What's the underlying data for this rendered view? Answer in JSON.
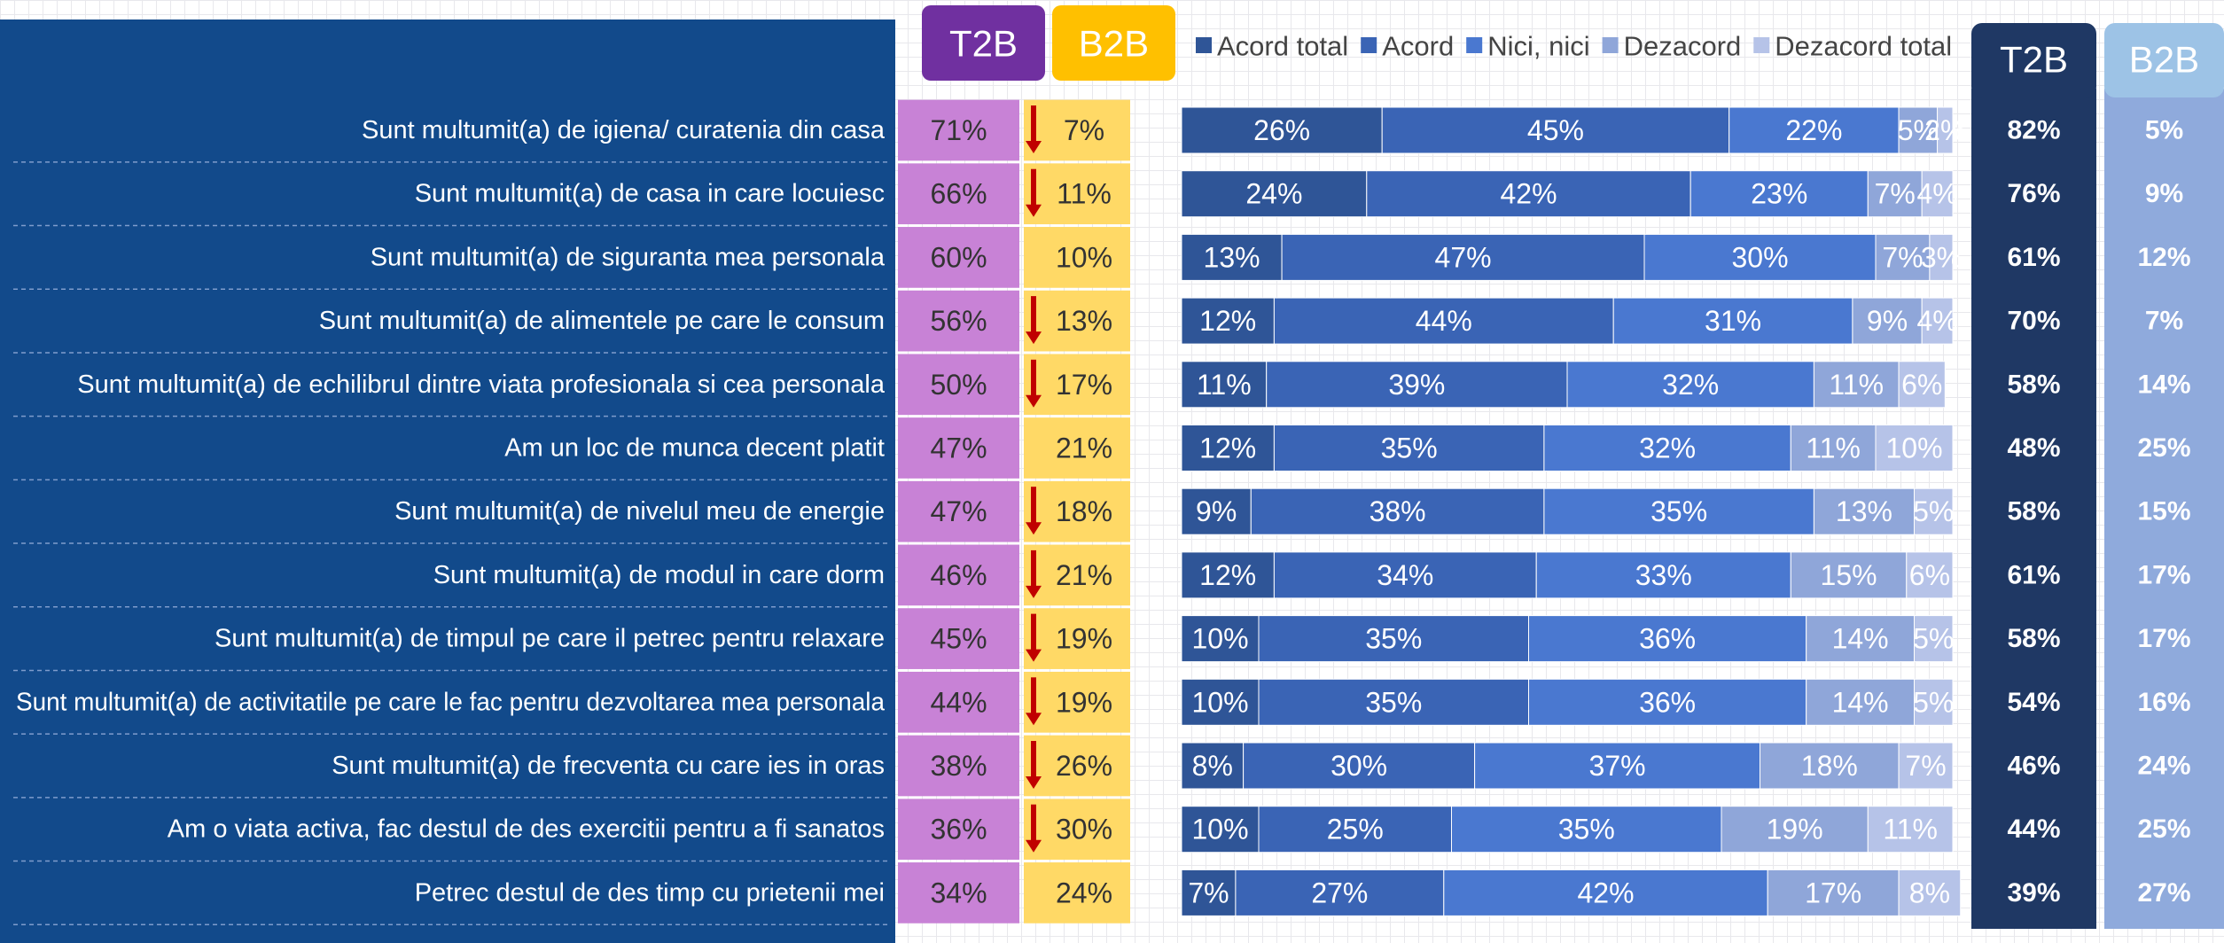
{
  "chart_data": {
    "type": "bar",
    "orientation": "horizontal",
    "stacked": true,
    "legend": "top",
    "categories": [
      "Sunt multumit(a) de igiena/ curatenia din casa",
      "Sunt multumit(a) de casa in care locuiesc",
      "Sunt multumit(a) de siguranta mea personala",
      "Sunt multumit(a) de alimentele pe care le consum",
      "Sunt multumit(a) de echilibrul dintre viata profesionala si cea personala",
      "Am un loc de munca decent platit",
      "Sunt multumit(a) de nivelul meu de energie",
      "Sunt multumit(a) de modul in care dorm",
      "Sunt multumit(a) de timpul pe care il petrec pentru relaxare",
      "Sunt multumit(a) de activitatile pe care le fac pentru dezvoltarea mea personala",
      "Sunt multumit(a) de frecventa cu care ies in oras",
      "Am o viata activa, fac destul de des exercitii pentru a fi sanatos",
      "Petrec destul de des timp cu prietenii mei"
    ],
    "xlim": [
      0,
      101
    ],
    "series": [
      {
        "name": "Acord total",
        "color": "#2f5597",
        "values": [
          26,
          24,
          13,
          12,
          11,
          12,
          9,
          12,
          10,
          10,
          8,
          10,
          7
        ],
        "value_labels": [
          "26%",
          "24%",
          "13%",
          "12%",
          "11%",
          "12%",
          "9%",
          "12%",
          "10%",
          "10%",
          "8%",
          "10%",
          "7%"
        ]
      },
      {
        "name": "Acord",
        "color": "#3a64b5",
        "values": [
          45,
          42,
          47,
          44,
          39,
          35,
          38,
          34,
          35,
          35,
          30,
          25,
          27
        ],
        "value_labels": [
          "45%",
          "42%",
          "47%",
          "44%",
          "39%",
          "35%",
          "38%",
          "34%",
          "35%",
          "35%",
          "30%",
          "25%",
          "27%"
        ]
      },
      {
        "name": "Nici, nici",
        "color": "#4a78d0",
        "values": [
          22,
          23,
          30,
          31,
          32,
          32,
          35,
          33,
          36,
          36,
          37,
          35,
          42
        ],
        "value_labels": [
          "22%",
          "23%",
          "30%",
          "31%",
          "32%",
          "32%",
          "35%",
          "33%",
          "36%",
          "36%",
          "37%",
          "35%",
          "42%"
        ]
      },
      {
        "name": "Dezacord",
        "color": "#8fa6d9",
        "values": [
          5,
          7,
          7,
          9,
          11,
          11,
          13,
          15,
          14,
          14,
          18,
          19,
          17
        ],
        "value_labels": [
          "5%",
          "7%",
          "7%",
          "9%",
          "11%",
          "11%",
          "13%",
          "15%",
          "14%",
          "14%",
          "18%",
          "19%",
          "17%"
        ]
      },
      {
        "name": "Dezacord total",
        "color": "#b6c3e8",
        "values": [
          2,
          4,
          3,
          4,
          6,
          10,
          5,
          6,
          5,
          5,
          7,
          11,
          8
        ],
        "value_labels": [
          "2%",
          "4%",
          "3%",
          "4%",
          "6%",
          "10%",
          "5%",
          "6%",
          "5%",
          "5%",
          "7%",
          "11%",
          "8%"
        ]
      }
    ]
  },
  "columns_current": [
    {
      "header": "T2B",
      "color": "#7030a0",
      "cell_color": "#c882d6",
      "cells": [
        "71%",
        "66%",
        "60%",
        "56%",
        "50%",
        "47%",
        "47%",
        "46%",
        "45%",
        "44%",
        "38%",
        "36%",
        "34%"
      ]
    },
    {
      "header": "B2B",
      "color": "#ffc000",
      "cell_color": "#ffd966",
      "cells": [
        "7%",
        "11%",
        "10%",
        "13%",
        "17%",
        "21%",
        "18%",
        "21%",
        "19%",
        "19%",
        "26%",
        "30%",
        "24%"
      ]
    }
  ],
  "significant_decrease": [
    true,
    true,
    false,
    true,
    true,
    false,
    true,
    true,
    true,
    true,
    true,
    true,
    false
  ],
  "columns_previous": [
    {
      "header": "T2B",
      "color": "#1f3864",
      "cell_color": "#1f3864",
      "cells": [
        "82%",
        "76%",
        "61%",
        "70%",
        "58%",
        "48%",
        "58%",
        "61%",
        "58%",
        "54%",
        "46%",
        "44%",
        "39%"
      ]
    },
    {
      "header": "B2B",
      "color": "#9dc3e6",
      "cell_color": "#8faadc",
      "cells": [
        "5%",
        "9%",
        "12%",
        "7%",
        "14%",
        "25%",
        "15%",
        "17%",
        "17%",
        "16%",
        "24%",
        "25%",
        "27%"
      ]
    }
  ]
}
